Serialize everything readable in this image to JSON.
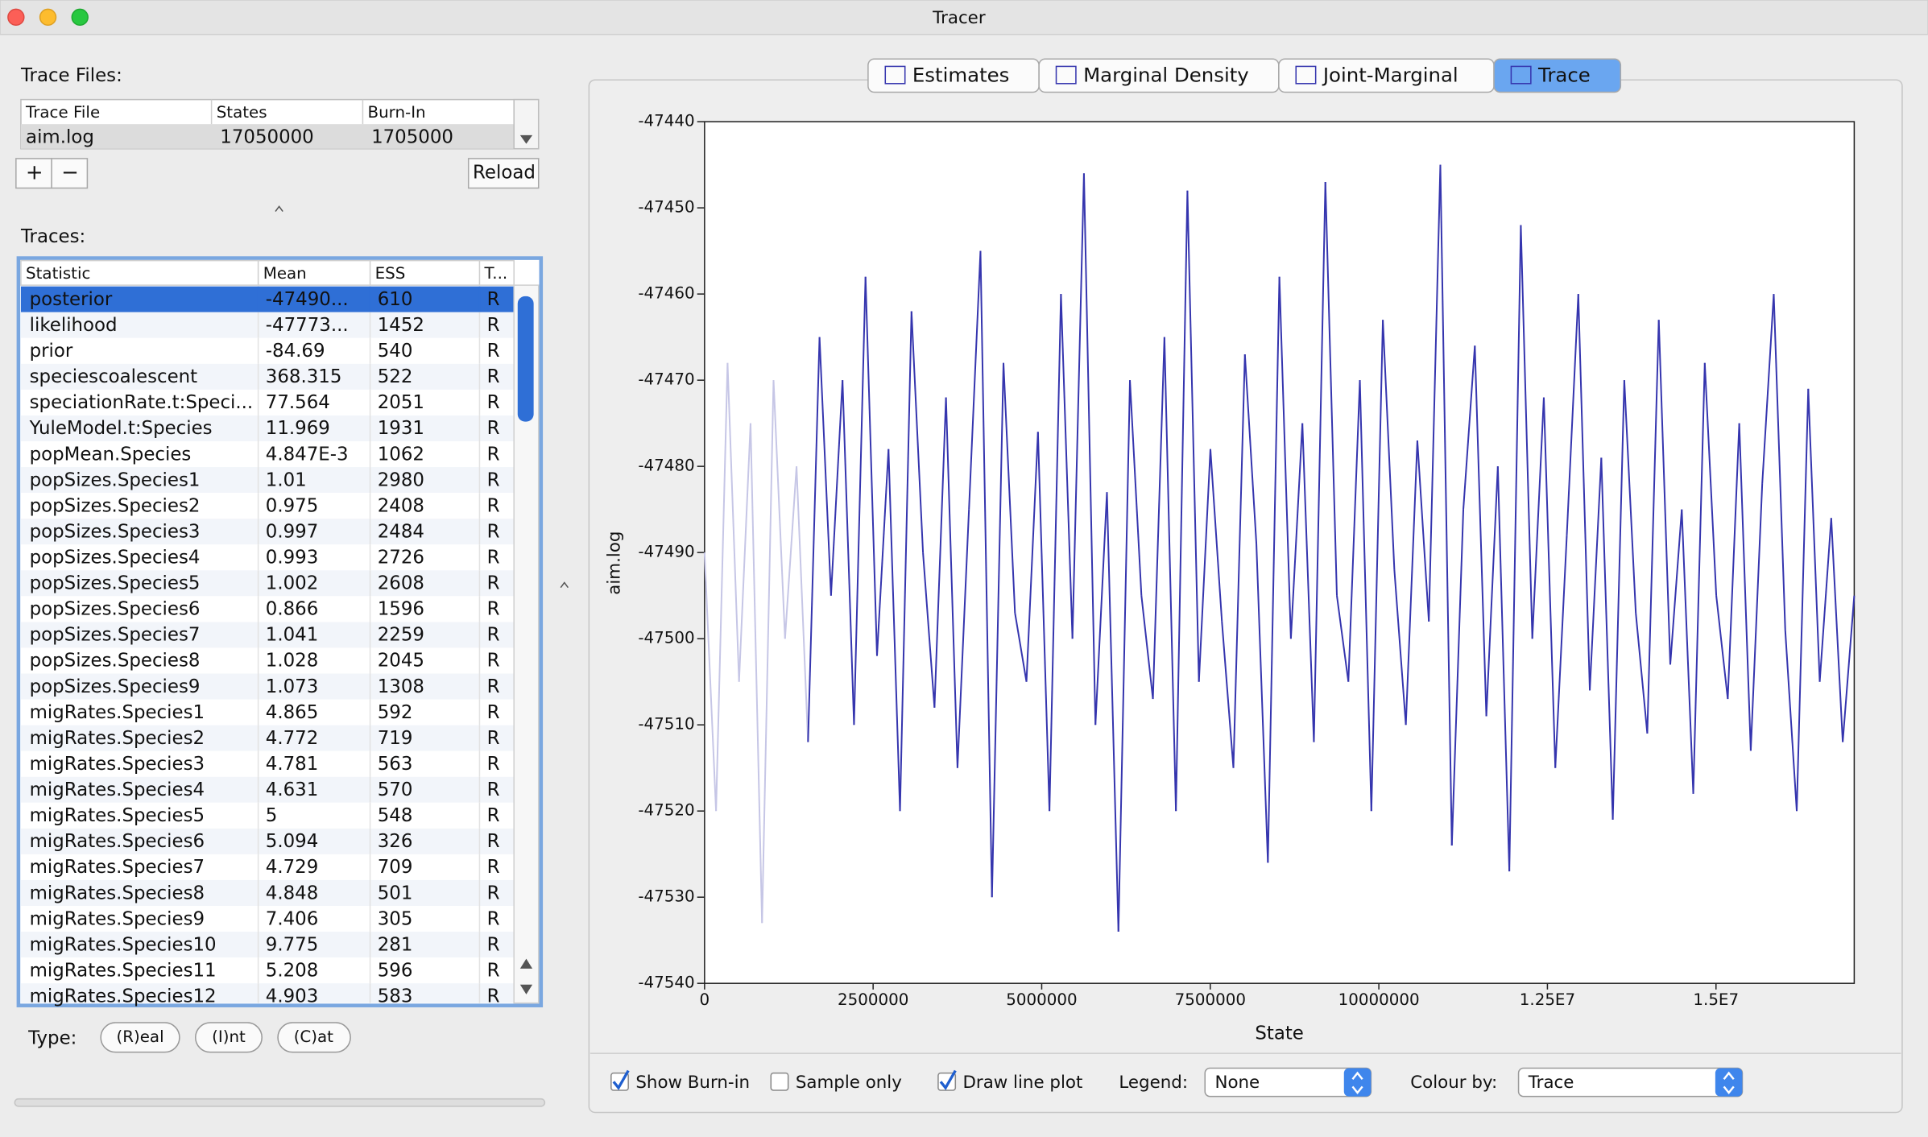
{
  "window": {
    "title": "Tracer"
  },
  "trace_files": {
    "label": "Trace Files:",
    "columns": [
      "Trace File",
      "States",
      "Burn-In"
    ],
    "rows": [
      [
        "aim.log",
        17050000,
        1705000
      ]
    ],
    "buttons": [
      "+",
      "−",
      "Reload"
    ]
  },
  "traces": {
    "label": "Traces:",
    "columns": [
      "Statistic",
      "Mean",
      "ESS",
      "T..."
    ],
    "rows": [
      [
        "posterior",
        "-47490...",
        610,
        "R"
      ],
      [
        "likelihood",
        "-47773...",
        1452,
        "R"
      ],
      [
        "prior",
        -84.69,
        540,
        "R"
      ],
      [
        "speciescoalescent",
        368.315,
        522,
        "R"
      ],
      [
        "speciationRate.t:Speci...",
        77.564,
        2051,
        "R"
      ],
      [
        "YuleModel.t:Species",
        11.969,
        1931,
        "R"
      ],
      [
        "popMean.Species",
        "4.847E-3",
        1062,
        "R"
      ],
      [
        "popSizes.Species1",
        1.01,
        2980,
        "R"
      ],
      [
        "popSizes.Species2",
        0.975,
        2408,
        "R"
      ],
      [
        "popSizes.Species3",
        0.997,
        2484,
        "R"
      ],
      [
        "popSizes.Species4",
        0.993,
        2726,
        "R"
      ],
      [
        "popSizes.Species5",
        1.002,
        2608,
        "R"
      ],
      [
        "popSizes.Species6",
        0.866,
        1596,
        "R"
      ],
      [
        "popSizes.Species7",
        1.041,
        2259,
        "R"
      ],
      [
        "popSizes.Species8",
        1.028,
        2045,
        "R"
      ],
      [
        "popSizes.Species9",
        1.073,
        1308,
        "R"
      ],
      [
        "migRates.Species1",
        4.865,
        592,
        "R"
      ],
      [
        "migRates.Species2",
        4.772,
        719,
        "R"
      ],
      [
        "migRates.Species3",
        4.781,
        563,
        "R"
      ],
      [
        "migRates.Species4",
        4.631,
        570,
        "R"
      ],
      [
        "migRates.Species5",
        5,
        548,
        "R"
      ],
      [
        "migRates.Species6",
        5.094,
        326,
        "R"
      ],
      [
        "migRates.Species7",
        4.729,
        709,
        "R"
      ],
      [
        "migRates.Species8",
        4.848,
        501,
        "R"
      ],
      [
        "migRates.Species9",
        7.406,
        305,
        "R"
      ],
      [
        "migRates.Species10",
        9.775,
        281,
        "R"
      ],
      [
        "migRates.Species11",
        5.208,
        596,
        "R"
      ],
      [
        "migRates.Species12",
        4.903,
        583,
        "R"
      ]
    ]
  },
  "type_selector": {
    "label": "Type:",
    "buttons": [
      "(R)eal",
      "(I)nt",
      "(C)at"
    ]
  },
  "tabs": [
    "Estimates",
    "Marginal Density",
    "Joint-Marginal",
    "Trace"
  ],
  "selected_tab": 3,
  "chart_data": {
    "type": "line",
    "x_label": "State",
    "y_label": "aim.log",
    "color": "#3535ae",
    "burn_in_color": "#c6c6e6",
    "xlim": [
      0,
      17050000
    ],
    "ylim": [
      -47540,
      -47440
    ],
    "xticks": [
      0,
      2500000,
      5000000,
      7500000,
      10000000,
      {
        "value": 12500000,
        "label": "1.25E7"
      },
      {
        "value": 15000000,
        "label": "1.5E7"
      }
    ],
    "yticks": [
      -47540,
      -47530,
      -47520,
      -47510,
      -47500,
      -47490,
      -47480,
      -47470,
      -47460,
      -47450,
      -47440
    ],
    "x": [
      0,
      170500,
      341000,
      511500,
      682000,
      852500,
      1023000,
      1193500,
      1364000,
      1534500,
      1705000,
      1875500,
      2046000,
      2216500,
      2387000,
      2557500,
      2728000,
      2898500,
      3069000,
      3239500,
      3410000,
      3580500,
      3751000,
      3921500,
      4092000,
      4262500,
      4433000,
      4603500,
      4774000,
      4944500,
      5115000,
      5285500,
      5456000,
      5626500,
      5797000,
      5967500,
      6138000,
      6308500,
      6479000,
      6649500,
      6820000,
      6990500,
      7161000,
      7331500,
      7502000,
      7672500,
      7843000,
      8013500,
      8184000,
      8354500,
      8525000,
      8695500,
      8866000,
      9036500,
      9207000,
      9377500,
      9548000,
      9718500,
      9889000,
      10059500,
      10230000,
      10400500,
      10571000,
      10741500,
      10912000,
      11082500,
      11253000,
      11423500,
      11594000,
      11764500,
      11935000,
      12105500,
      12276000,
      12446500,
      12617000,
      12787500,
      12958000,
      13128500,
      13299000,
      13469500,
      13640000,
      13810500,
      13981000,
      14151500,
      14322000,
      14492500,
      14663000,
      14833500,
      15004000,
      15174500,
      15345000,
      15515500,
      15686000,
      15856500,
      16027000,
      16197500,
      16368000,
      16538500,
      16709000,
      16879500,
      17050000
    ],
    "values": [
      -47490,
      -47520,
      -47468,
      -47505,
      -47475,
      -47533,
      -47470,
      -47500,
      -47480,
      -47512,
      -47465,
      -47495,
      -47470,
      -47510,
      -47458,
      -47502,
      -47478,
      -47520,
      -47462,
      -47490,
      -47508,
      -47472,
      -47515,
      -47485,
      -47455,
      -47530,
      -47468,
      -47497,
      -47505,
      -47476,
      -47520,
      -47460,
      -47500,
      -47446,
      -47510,
      -47483,
      -47534,
      -47470,
      -47495,
      -47507,
      -47465,
      -47520,
      -47448,
      -47505,
      -47478,
      -47498,
      -47515,
      -47467,
      -47489,
      -47526,
      -47458,
      -47500,
      -47475,
      -47512,
      -47447,
      -47495,
      -47505,
      -47470,
      -47520,
      -47463,
      -47492,
      -47510,
      -47477,
      -47498,
      -47445,
      -47524,
      -47485,
      -47466,
      -47509,
      -47480,
      -47527,
      -47452,
      -47500,
      -47472,
      -47515,
      -47488,
      -47460,
      -47506,
      -47479,
      -47521,
      -47470,
      -47497,
      -47511,
      -47463,
      -47503,
      -47485,
      -47518,
      -47468,
      -47495,
      -47507,
      -47475,
      -47513,
      -47482,
      -47460,
      -47499,
      -47520,
      -47471,
      -47505,
      -47486,
      -47512,
      -47495
    ]
  },
  "controls": {
    "show_burn_in": {
      "label": "Show Burn-in",
      "checked": true
    },
    "sample_only": {
      "label": "Sample only",
      "checked": false
    },
    "draw_line_plot": {
      "label": "Draw line plot",
      "checked": true
    },
    "legend": {
      "label": "Legend:",
      "value": "None"
    },
    "colour_by": {
      "label": "Colour by:",
      "value": "Trace"
    }
  }
}
